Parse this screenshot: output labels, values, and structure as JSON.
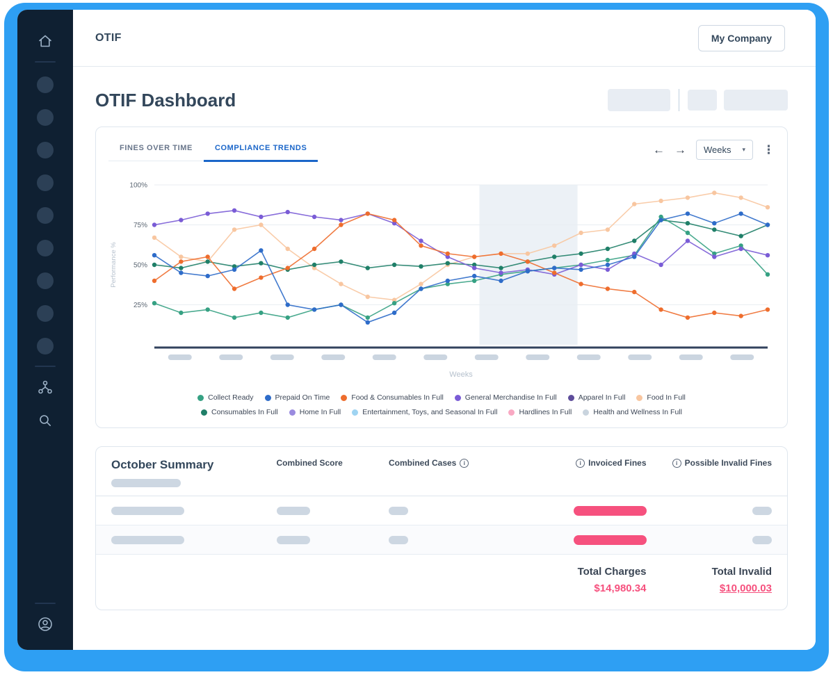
{
  "topbar": {
    "title": "OTIF",
    "company_button": "My Company"
  },
  "page": {
    "title": "OTIF Dashboard"
  },
  "chart_card": {
    "tabs": [
      {
        "label": "FINES OVER TIME",
        "active": false
      },
      {
        "label": "COMPLIANCE TRENDS",
        "active": true
      }
    ],
    "controls": {
      "prev_glyph": "←",
      "next_glyph": "→",
      "period_value": "Weeks",
      "caret_glyph": "▾",
      "menu_glyph": "⋮"
    }
  },
  "chart_data": {
    "type": "line",
    "title": "",
    "xlabel": "Weeks",
    "ylabel": "Performance %",
    "ylim": [
      0,
      100
    ],
    "yticks": [
      100,
      75,
      50,
      25
    ],
    "ytick_labels": [
      "100%",
      "75%",
      "50%",
      "25%"
    ],
    "x_count": 24,
    "x_tick_style": "loading-skeleton-pills",
    "x_pill_count": 12,
    "grid": true,
    "legend_position": "bottom",
    "highlight_band": {
      "from_frac": 0.53,
      "to_frac": 0.69
    },
    "series": [
      {
        "name": "Food In Full",
        "color": "#f8c6a0",
        "values": [
          67,
          55,
          52,
          72,
          75,
          60,
          48,
          38,
          30,
          28,
          38,
          50,
          55,
          57,
          57,
          62,
          70,
          72,
          88,
          90,
          92,
          95,
          92,
          86
        ]
      },
      {
        "name": "Consumables In Full",
        "color": "#1f7f68",
        "values": [
          50,
          48,
          52,
          49,
          51,
          47,
          50,
          52,
          48,
          50,
          49,
          51,
          50,
          48,
          52,
          55,
          57,
          60,
          65,
          78,
          76,
          72,
          68,
          75
        ]
      },
      {
        "name": "Collect Ready",
        "color": "#36a183",
        "values": [
          26,
          20,
          22,
          17,
          20,
          17,
          22,
          25,
          17,
          26,
          35,
          38,
          40,
          44,
          46,
          48,
          50,
          53,
          56,
          80,
          70,
          57,
          62,
          44
        ]
      },
      {
        "name": "General Merchandise In Full",
        "color": "#7a5cd6",
        "values": [
          75,
          78,
          82,
          84,
          80,
          83,
          80,
          78,
          82,
          76,
          65,
          55,
          48,
          45,
          47,
          44,
          50,
          47,
          57,
          50,
          65,
          55,
          60,
          56
        ]
      },
      {
        "name": "Food & Consumables In Full",
        "color": "#ee6d2d",
        "values": [
          40,
          52,
          55,
          35,
          42,
          48,
          60,
          75,
          82,
          78,
          62,
          57,
          55,
          57,
          52,
          45,
          38,
          35,
          33,
          22,
          17,
          20,
          18,
          22
        ]
      },
      {
        "name": "Prepaid On Time",
        "color": "#2e6cc9",
        "values": [
          56,
          45,
          43,
          47,
          59,
          25,
          22,
          25,
          14,
          20,
          35,
          40,
          43,
          40,
          46,
          48,
          47,
          50,
          55,
          78,
          82,
          76,
          82,
          75
        ]
      }
    ],
    "legend": [
      {
        "label": "Collect Ready",
        "color": "#36a183"
      },
      {
        "label": "Prepaid On Time",
        "color": "#2e6cc9"
      },
      {
        "label": "Food & Consumables In Full",
        "color": "#ee6d2d"
      },
      {
        "label": "General Merchandise In Full",
        "color": "#7a5cd6"
      },
      {
        "label": "Apparel In Full",
        "color": "#5e4d9b"
      },
      {
        "label": "Food In Full",
        "color": "#f8c6a0"
      },
      {
        "label": "Consumables In Full",
        "color": "#1f7f68"
      },
      {
        "label": "Home In Full",
        "color": "#9a8bdf"
      },
      {
        "label": "Entertainment, Toys, and Seasonal In Full",
        "color": "#9fd4f2"
      },
      {
        "label": "Hardlines In Full",
        "color": "#f9a9c3"
      },
      {
        "label": "Health and Wellness In Full",
        "color": "#c9d4de"
      }
    ]
  },
  "summary": {
    "title": "October Summary",
    "columns": [
      "Combined Score",
      "Combined Cases",
      "Invoiced Fines",
      "Possible Invalid Fines"
    ],
    "totals": {
      "charges_label": "Total Charges",
      "charges_value": "$14,980.34",
      "invalid_label": "Total Invalid",
      "invalid_value": "$10,000.03"
    }
  },
  "colors": {
    "frame_blue": "#2e9ff3",
    "sidebar_navy": "#0f2032",
    "tab_active_blue": "#1b66c9",
    "accent_pink": "#f6517e",
    "skeleton_gray": "#cdd7e2",
    "band_gray": "#ecf1f6"
  }
}
